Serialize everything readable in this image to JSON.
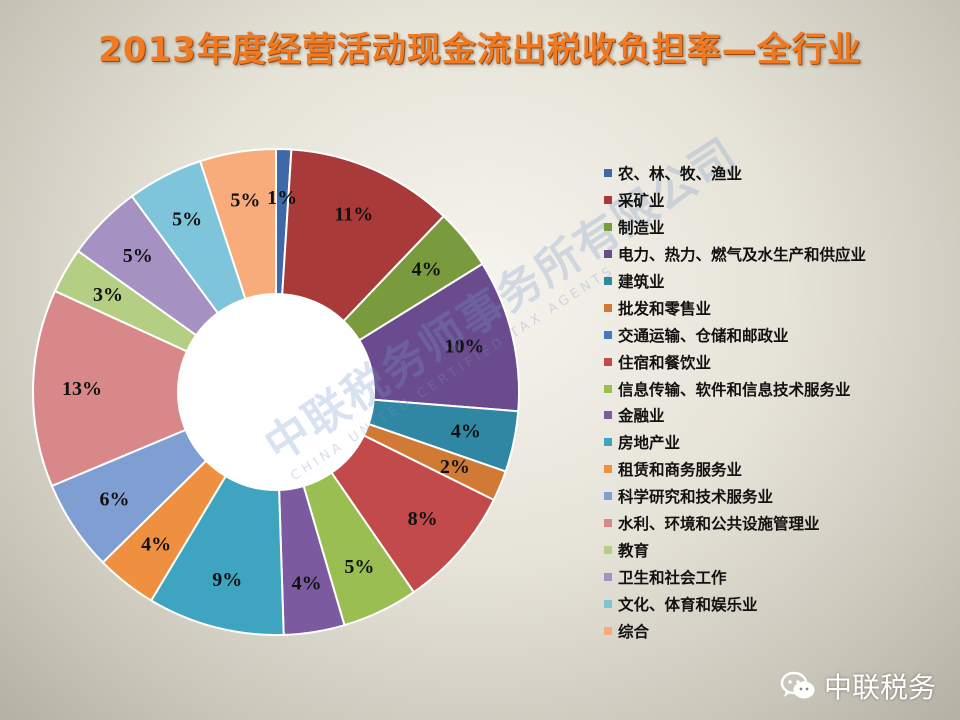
{
  "title": "2013年度经营活动现金流出税收负担率—全行业",
  "chart_data": {
    "type": "pie",
    "subtype": "doughnut",
    "categories": [
      "农、林、牧、渔业",
      "采矿业",
      "制造业",
      "电力、热力、燃气及水生产和供应业",
      "建筑业",
      "批发和零售业",
      "交通运输、仓储和邮政业",
      "住宿和餐饮业",
      "信息传输、软件和信息技术服务业",
      "金融业",
      "房地产业",
      "租赁和商务服务业",
      "科学研究和技术服务业",
      "水利、环境和公共设施管理业",
      "教育",
      "卫生和社会工作",
      "文化、体育和娱乐业",
      "综合"
    ],
    "values": [
      1,
      11,
      4,
      10,
      4,
      2,
      0,
      8,
      5,
      4,
      9,
      4,
      6,
      13,
      3,
      5,
      5,
      5
    ],
    "labels": [
      "1%",
      "11%",
      "4%",
      "10%",
      "4%",
      "2%",
      "",
      "8%",
      "5%",
      "4%",
      "9%",
      "4%",
      "6%",
      "13%",
      "3%",
      "5%",
      "5%",
      "5%"
    ],
    "colors": [
      "#3e68a8",
      "#a83a3a",
      "#7a9a3e",
      "#6a4c8e",
      "#2f87a4",
      "#d07a35",
      "#4a78bc",
      "#c24a4a",
      "#9abe52",
      "#7c5aa0",
      "#3fa4c0",
      "#ef9040",
      "#7f9fd2",
      "#d88888",
      "#b4cf84",
      "#a591c2",
      "#7ec4da",
      "#f8ac7c"
    ],
    "legend_position": "right"
  },
  "watermark": {
    "cn": "中联税务师事务所有限公司",
    "en": "CHINA UNITED CERTIFIED TAX AGENTS"
  },
  "footer": {
    "brand": "中联税务"
  }
}
